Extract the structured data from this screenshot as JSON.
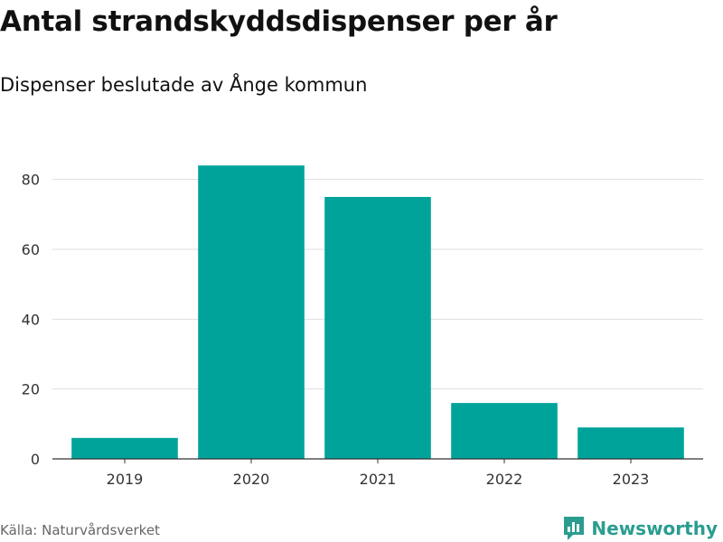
{
  "header": {
    "title": "Antal strandskyddsdispenser per år",
    "subtitle": "Dispenser beslutade av Ånge kommun"
  },
  "footer": {
    "source": "Källa: Naturvårdsverket",
    "brand": "Newsworthy"
  },
  "colors": {
    "bar": "#00a39a",
    "grid": "#dddddd",
    "axis": "#333333",
    "brand": "#2a9d8f"
  },
  "icons": {
    "brand_logo": "newsworthy-logo-icon"
  },
  "chart_data": {
    "type": "bar",
    "title": "Antal strandskyddsdispenser per år",
    "subtitle": "Dispenser beslutade av Ånge kommun",
    "xlabel": "",
    "ylabel": "",
    "categories": [
      "2019",
      "2020",
      "2021",
      "2022",
      "2023"
    ],
    "values": [
      6,
      84,
      75,
      16,
      9
    ],
    "ylim": [
      0,
      90
    ],
    "yticks": [
      0,
      20,
      40,
      60,
      80
    ],
    "grid": true,
    "legend": "none"
  }
}
